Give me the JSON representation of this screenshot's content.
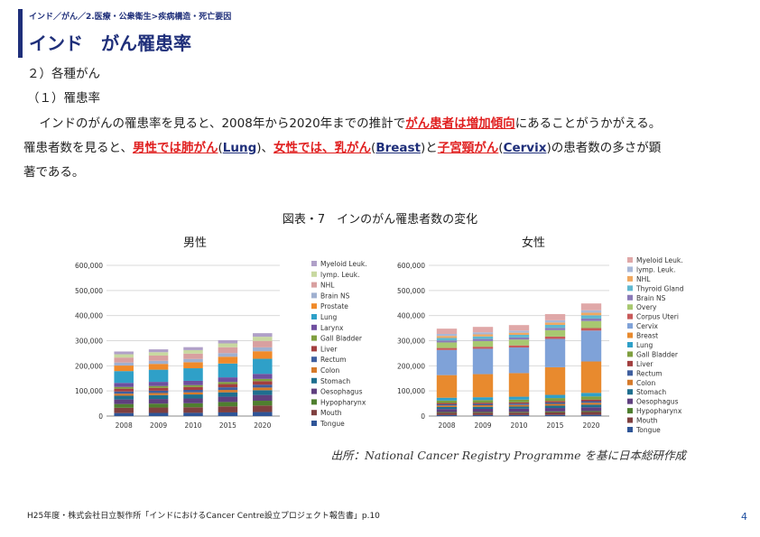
{
  "header": {
    "breadcrumb": "インド／がん／2.医療・公衆衛生>疾病構造・死亡要因",
    "title": "インド　がん罹患率"
  },
  "body": {
    "section": "２）各種がん",
    "subsection": "（１）罹患率",
    "p1_a": "　インドのがんの罹患率を見ると、2008年から2020年までの推計で",
    "p1_hl": "がん患者は増加傾向",
    "p1_b": "にあることがうかがえる。",
    "p2_a": "罹患者数を見ると、",
    "p2_hl1": "男性では肺がん",
    "p2_p1": "(",
    "p2_en1": "Lung",
    "p2_p2": ")、",
    "p2_hl2": "女性では、乳がん",
    "p2_p3": "(",
    "p2_en2": "Breast",
    "p2_p4": ")と",
    "p2_hl3": "子宮頸がん",
    "p2_p5": "(",
    "p2_en3": "Cervix",
    "p2_p6": ")の患者数の多さが顕",
    "p3": "著である。"
  },
  "figure": {
    "title": "図表・7　インのがん罹患者数の変化",
    "source": "出所：National Cancer Registry Programme を基に日本総研作成"
  },
  "footer": {
    "note": "H25年度・株式会社日立製作所「インドにおけるCancer Centre設立プロジェクト報告書」p.10",
    "page": "4"
  },
  "chart_data": [
    {
      "type": "bar",
      "stacked": true,
      "title": "男性",
      "categories": [
        "2008",
        "2009",
        "2010",
        "2015",
        "2020"
      ],
      "ylim": [
        0,
        600000
      ],
      "yticks": [
        0,
        100000,
        200000,
        300000,
        400000,
        500000,
        600000
      ],
      "ytick_labels": [
        "0",
        "100,000",
        "200,000",
        "300,000",
        "400,000",
        "500,000",
        "600,000"
      ],
      "legend_position": "right",
      "series": [
        {
          "name": "Tongue",
          "color": "#2f5597",
          "values": [
            12000,
            12500,
            13000,
            14500,
            16000
          ]
        },
        {
          "name": "Mouth",
          "color": "#7f3f3f",
          "values": [
            21000,
            21500,
            22000,
            24000,
            26000
          ]
        },
        {
          "name": "Hypopharynx",
          "color": "#4f7f2f",
          "values": [
            15000,
            15500,
            16000,
            17500,
            19000
          ]
        },
        {
          "name": "Oesophagus",
          "color": "#5f3f7f",
          "values": [
            18000,
            18500,
            19000,
            21000,
            23000
          ]
        },
        {
          "name": "Stomach",
          "color": "#1f6f8f",
          "values": [
            15000,
            15500,
            16000,
            17500,
            19000
          ]
        },
        {
          "name": "Colon",
          "color": "#d67a2a",
          "values": [
            8000,
            8300,
            8600,
            9500,
            10500
          ]
        },
        {
          "name": "Rectum",
          "color": "#3f5f9f",
          "values": [
            9000,
            9300,
            9600,
            10500,
            11500
          ]
        },
        {
          "name": "Liver",
          "color": "#a33f3f",
          "values": [
            11000,
            11300,
            11600,
            12800,
            14000
          ]
        },
        {
          "name": "Gall Bladder",
          "color": "#7f9f3f",
          "values": [
            7000,
            7200,
            7500,
            8300,
            9000
          ]
        },
        {
          "name": "Larynx",
          "color": "#6f4f9f",
          "values": [
            16000,
            16500,
            17000,
            18500,
            20000
          ]
        },
        {
          "name": "Lung",
          "color": "#2fa0c8",
          "values": [
            47000,
            48500,
            50000,
            55000,
            60000
          ]
        },
        {
          "name": "Prostate",
          "color": "#f08a2a",
          "values": [
            22000,
            23000,
            24000,
            27000,
            30000
          ]
        },
        {
          "name": "Brain NS",
          "color": "#9fb0d0",
          "values": [
            12000,
            12500,
            13000,
            14300,
            15500
          ]
        },
        {
          "name": "NHL",
          "color": "#d8a0a0",
          "values": [
            20000,
            20700,
            21400,
            23600,
            25700
          ]
        },
        {
          "name": "lymp. Leuk.",
          "color": "#c8d8a0",
          "values": [
            13000,
            13400,
            13800,
            15200,
            16600
          ]
        },
        {
          "name": "Myeloid Leuk.",
          "color": "#b0a0c8",
          "values": [
            11000,
            11400,
            11800,
            13000,
            14200
          ]
        }
      ]
    },
    {
      "type": "bar",
      "stacked": true,
      "title": "女性",
      "categories": [
        "2008",
        "2009",
        "2010",
        "2015",
        "2020"
      ],
      "ylim": [
        0,
        600000
      ],
      "yticks": [
        0,
        100000,
        200000,
        300000,
        400000,
        500000,
        600000
      ],
      "ytick_labels": [
        "0",
        "100,000",
        "200,000",
        "300,000",
        "400,000",
        "500,000",
        "600,000"
      ],
      "legend_position": "right",
      "series": [
        {
          "name": "Tongue",
          "color": "#2f5597",
          "values": [
            4000,
            4100,
            4200,
            4600,
            5000
          ]
        },
        {
          "name": "Mouth",
          "color": "#7f3f3f",
          "values": [
            9000,
            9200,
            9400,
            10300,
            11300
          ]
        },
        {
          "name": "Hypopharynx",
          "color": "#4f7f2f",
          "values": [
            3000,
            3100,
            3200,
            3500,
            3800
          ]
        },
        {
          "name": "Oesophagus",
          "color": "#5f3f7f",
          "values": [
            12000,
            12300,
            12600,
            13800,
            15100
          ]
        },
        {
          "name": "Stomach",
          "color": "#1f6f8f",
          "values": [
            8000,
            8200,
            8400,
            9200,
            10100
          ]
        },
        {
          "name": "Colon",
          "color": "#d67a2a",
          "values": [
            6000,
            6200,
            6400,
            7000,
            7700
          ]
        },
        {
          "name": "Rectum",
          "color": "#3f5f9f",
          "values": [
            5000,
            5100,
            5300,
            5800,
            6300
          ]
        },
        {
          "name": "Liver",
          "color": "#a33f3f",
          "values": [
            5000,
            5100,
            5300,
            5800,
            6300
          ]
        },
        {
          "name": "Gall Bladder",
          "color": "#7f9f3f",
          "values": [
            10000,
            10300,
            10600,
            11600,
            12700
          ]
        },
        {
          "name": "Lung",
          "color": "#2fa0c8",
          "values": [
            11000,
            11300,
            11600,
            12700,
            14000
          ]
        },
        {
          "name": "Breast",
          "color": "#e88a2e",
          "values": [
            90000,
            92000,
            94000,
            110000,
            125000
          ]
        },
        {
          "name": "Cervix",
          "color": "#7fa2d8",
          "values": [
            100000,
            101000,
            102000,
            113000,
            123000
          ]
        },
        {
          "name": "Corpus Uteri",
          "color": "#c85a5a",
          "values": [
            8000,
            8200,
            8400,
            9200,
            10000
          ]
        },
        {
          "name": "Overy",
          "color": "#a8c870",
          "values": [
            22000,
            22500,
            23000,
            25500,
            28000
          ]
        },
        {
          "name": "Brain NS",
          "color": "#8a7ab8",
          "values": [
            8000,
            8200,
            8400,
            9200,
            10000
          ]
        },
        {
          "name": "Thyroid Gland",
          "color": "#60b8d0",
          "values": [
            10000,
            10300,
            10600,
            11800,
            13000
          ]
        },
        {
          "name": "NHL",
          "color": "#f0a860",
          "values": [
            8000,
            8200,
            8400,
            9200,
            10000
          ]
        },
        {
          "name": "lymp. Leuk.",
          "color": "#a8b8d8",
          "values": [
            8000,
            8200,
            8400,
            9200,
            10000
          ]
        },
        {
          "name": "Myeloid Leuk.",
          "color": "#e0a8a8",
          "values": [
            21000,
            21500,
            22000,
            24500,
            27000
          ]
        }
      ]
    }
  ]
}
